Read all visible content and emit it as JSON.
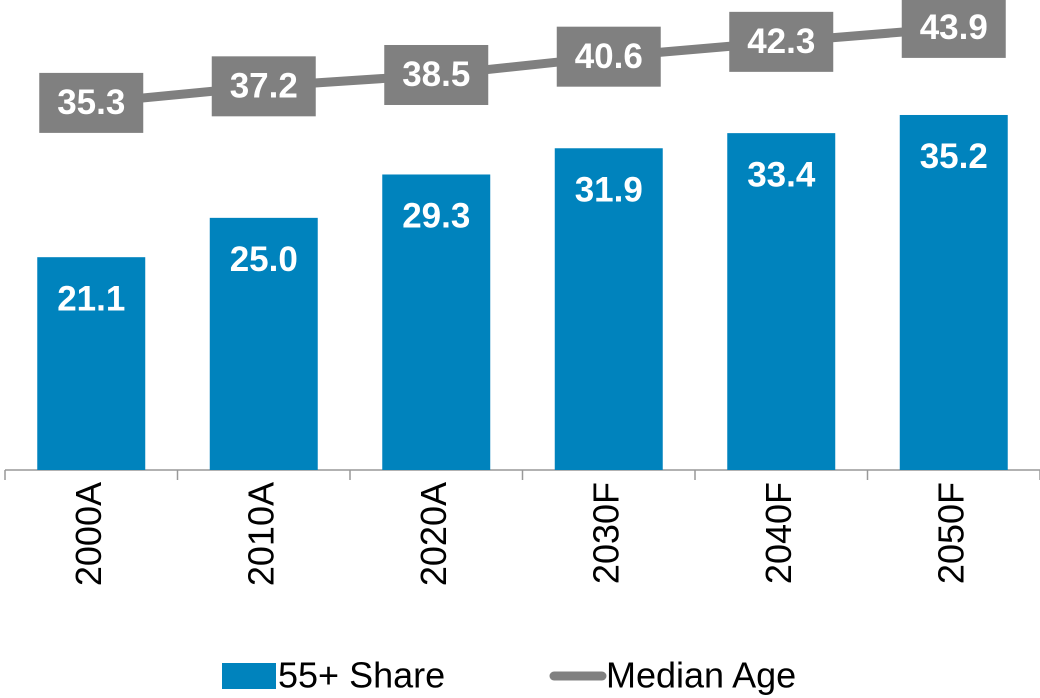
{
  "chart_data": {
    "type": "bar_line",
    "categories": [
      "2000A",
      "2010A",
      "2020A",
      "2030F",
      "2040F",
      "2050F"
    ],
    "series": [
      {
        "name": "55+ Share",
        "type": "bar",
        "color": "#0083bd",
        "values": [
          21.1,
          25.0,
          29.3,
          31.9,
          33.4,
          35.2
        ],
        "value_labels": [
          "21.1",
          "25.0",
          "29.3",
          "31.9",
          "33.4",
          "35.2"
        ]
      },
      {
        "name": "Median Age",
        "type": "line",
        "axis": "y2",
        "color": "#808080",
        "values": [
          35.3,
          37.2,
          38.5,
          40.6,
          42.3,
          43.9
        ],
        "value_labels": [
          "35.3",
          "37.2",
          "38.5",
          "40.6",
          "42.3",
          "43.9"
        ]
      }
    ],
    "ylim": [
      0,
      46.6
    ],
    "y2lim": [
      -6.8,
      47.1
    ],
    "legend": "bottom"
  }
}
